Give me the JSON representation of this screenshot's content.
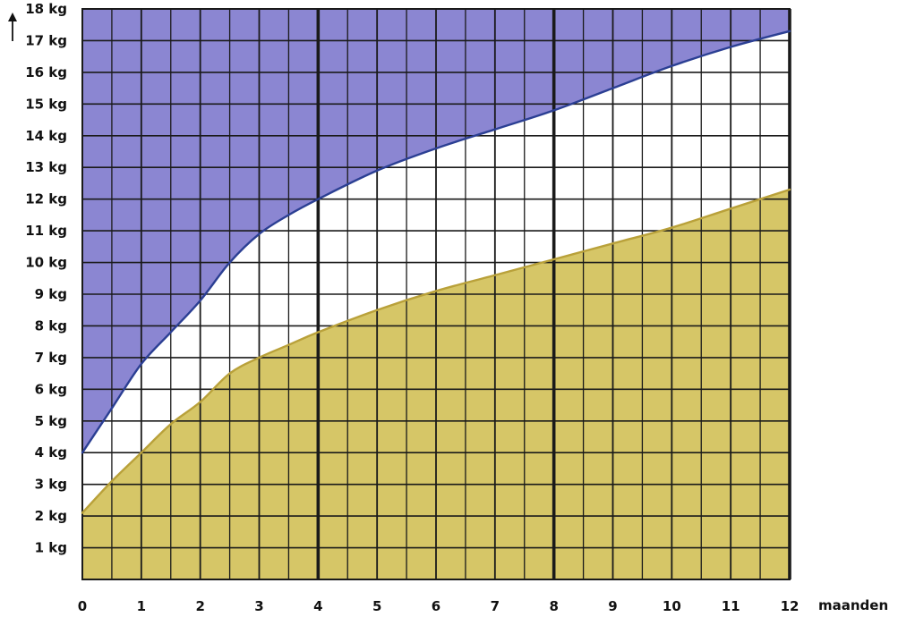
{
  "chart_data": {
    "type": "area",
    "title": "",
    "xlabel": "maanden",
    "ylabel": "",
    "xlim": [
      0,
      12
    ],
    "ylim": [
      0,
      18
    ],
    "x_ticks": [
      0,
      1,
      2,
      3,
      4,
      5,
      6,
      7,
      8,
      9,
      10,
      11,
      12
    ],
    "x_tick_labels": [
      "0",
      "1",
      "2",
      "3",
      "4",
      "5",
      "6",
      "7",
      "8",
      "9",
      "10",
      "11",
      "12"
    ],
    "y_ticks": [
      1,
      2,
      3,
      4,
      5,
      6,
      7,
      8,
      9,
      10,
      11,
      12,
      13,
      14,
      15,
      16,
      17,
      18
    ],
    "y_tick_labels": [
      "1 kg",
      "2 kg",
      "3 kg",
      "4 kg",
      "5 kg",
      "6 kg",
      "7 kg",
      "8 kg",
      "9 kg",
      "10 kg",
      "11 kg",
      "12 kg",
      "13 kg",
      "14 kg",
      "15 kg",
      "16 kg",
      "17 kg",
      "18 kg"
    ],
    "grid": true,
    "grid_minor_x_per_month": 2,
    "y_axis_arrow": true,
    "series": [
      {
        "color": "#2b3f93",
        "fill_color": "#8b86d2",
        "fill": "above",
        "x": [
          0,
          0.5,
          1,
          1.5,
          2,
          2.5,
          3,
          3.5,
          4,
          5,
          6,
          7,
          8,
          9,
          10,
          11,
          12
        ],
        "y": [
          4.0,
          5.4,
          6.8,
          7.8,
          8.8,
          10.0,
          10.9,
          11.5,
          12.0,
          12.9,
          13.6,
          14.2,
          14.8,
          15.5,
          16.2,
          16.8,
          17.3
        ]
      },
      {
        "color": "#b9a13a",
        "fill_color": "#d6c667",
        "fill": "below",
        "x": [
          0,
          0.5,
          1,
          1.5,
          2,
          2.5,
          3,
          3.5,
          4,
          5,
          6,
          7,
          8,
          9,
          10,
          11,
          12
        ],
        "y": [
          2.1,
          3.1,
          4.0,
          4.9,
          5.6,
          6.5,
          7.0,
          7.4,
          7.8,
          8.5,
          9.1,
          9.6,
          10.1,
          10.6,
          11.1,
          11.7,
          12.3
        ]
      }
    ]
  }
}
